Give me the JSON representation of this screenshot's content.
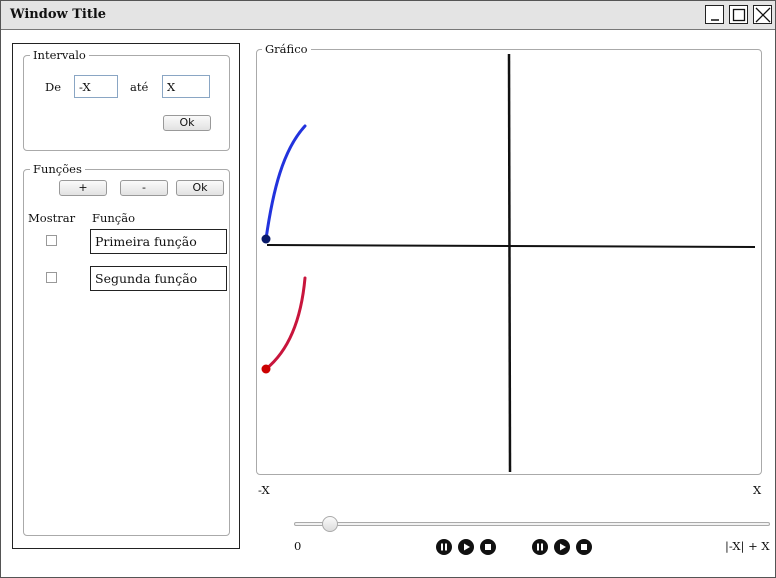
{
  "window": {
    "title": "Window Title"
  },
  "interval": {
    "legend": "Intervalo",
    "from_label": "De",
    "from_value": "-X",
    "to_label": "até",
    "to_value": "X",
    "ok_label": "Ok"
  },
  "functions": {
    "legend": "Funções",
    "add_label": "+",
    "remove_label": "-",
    "ok_label": "Ok",
    "col_show": "Mostrar",
    "col_function": "Função",
    "items": [
      {
        "name": "Primeira função",
        "checked": false,
        "color": "#2233dd"
      },
      {
        "name": "Segunda função",
        "checked": false,
        "color": "#cc1133"
      }
    ]
  },
  "graph": {
    "legend": "Gráfico",
    "x_min_label": "-X",
    "x_max_label": "X"
  },
  "slider": {
    "min_label": "0",
    "max_label": "|-X| + X",
    "value_fraction": 0.08
  },
  "playback": {
    "group1": [
      "pause-icon",
      "play-icon",
      "stop-icon"
    ],
    "group2": [
      "pause-icon",
      "play-icon",
      "stop-icon"
    ]
  }
}
